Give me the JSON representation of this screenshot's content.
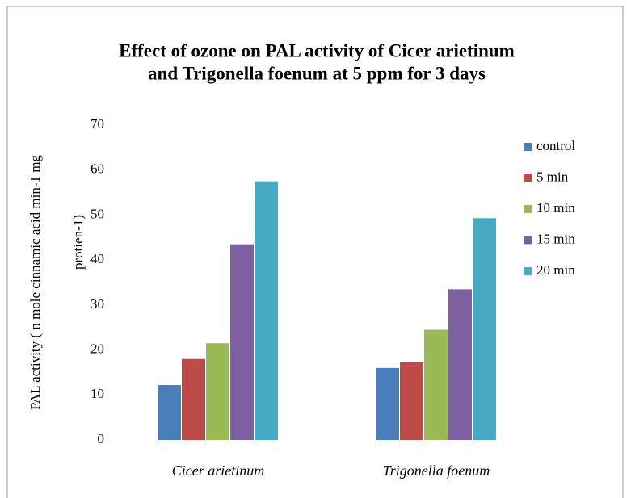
{
  "chart_data": {
    "type": "bar",
    "title": [
      "Effect of ozone on PAL activity of Cicer arietinum",
      "and  Trigonella foenum  at  5 ppm for 3 days"
    ],
    "y_label": [
      "PAL activity  ( n mole cinnamic acid min-1 mg",
      "protien-1)"
    ],
    "categories": [
      "Cicer arietinum",
      "Trigonella foenum"
    ],
    "series": [
      {
        "name": "control",
        "color": "#4a7ebb",
        "values": [
          12.2,
          16
        ]
      },
      {
        "name": "5 min",
        "color": "#be4b48",
        "values": [
          18,
          17.3
        ]
      },
      {
        "name": "10 min",
        "color": "#98b954",
        "values": [
          21.5,
          24.5
        ]
      },
      {
        "name": "15 min",
        "color": "#7d60a0",
        "values": [
          43.5,
          33.5
        ]
      },
      {
        "name": "20 min",
        "color": "#46aac5",
        "values": [
          57.5,
          49.3
        ]
      }
    ],
    "ylim": [
      0,
      70
    ],
    "yticks": [
      0,
      10,
      20,
      30,
      40,
      50,
      60,
      70
    ],
    "grid": false,
    "legend": "right"
  }
}
